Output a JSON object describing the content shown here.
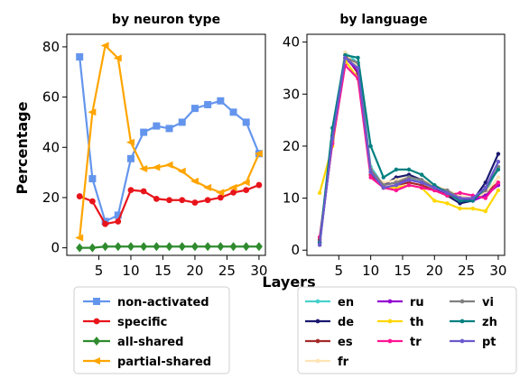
{
  "chart_data": [
    {
      "type": "line",
      "title": "by neuron type",
      "ylabel": "Percentage",
      "xlabel": "",
      "xlim": [
        0,
        31
      ],
      "ylim": [
        -3,
        85
      ],
      "xticks": [
        5,
        10,
        15,
        20,
        25,
        30
      ],
      "yticks": [
        0,
        20,
        40,
        60,
        80
      ],
      "grid": false,
      "legend_placement": "below",
      "x": [
        2,
        4,
        6,
        8,
        10,
        12,
        14,
        16,
        18,
        20,
        22,
        24,
        26,
        28,
        30
      ],
      "series": [
        {
          "name": "non-activated",
          "color": "#6495ED",
          "marker": "square",
          "values": [
            76,
            27.5,
            10.5,
            13,
            35.5,
            46,
            48.5,
            47.5,
            50,
            55.5,
            57,
            58.5,
            54,
            50,
            37.5
          ]
        },
        {
          "name": "specific",
          "color": "#E8141B",
          "marker": "circle",
          "values": [
            20.5,
            18.5,
            9.5,
            10.5,
            23,
            22.5,
            19.5,
            19,
            19,
            18,
            19,
            20,
            22,
            23,
            25
          ]
        },
        {
          "name": "all-shared",
          "color": "#2E8B2E",
          "marker": "diamond",
          "values": [
            0,
            0,
            0.5,
            0.5,
            0.5,
            0.5,
            0.5,
            0.5,
            0.5,
            0.5,
            0.5,
            0.5,
            0.5,
            0.5,
            0.5
          ]
        },
        {
          "name": "partial-shared",
          "color": "#FFA500",
          "marker": "triangle-left",
          "values": [
            4,
            54,
            80.5,
            75.5,
            42,
            31.5,
            32,
            33,
            30.5,
            26.5,
            24,
            22,
            24,
            26,
            37.5
          ]
        }
      ]
    },
    {
      "type": "line",
      "title": "by language",
      "ylabel": "",
      "xlabel": "Layers",
      "xlim": [
        0,
        31
      ],
      "ylim": [
        -1,
        41.5
      ],
      "xticks": [
        5,
        10,
        15,
        20,
        25,
        30
      ],
      "yticks": [
        0,
        10,
        20,
        30,
        40
      ],
      "grid": false,
      "legend_placement": "below",
      "x": [
        2,
        4,
        6,
        8,
        10,
        12,
        14,
        16,
        18,
        20,
        22,
        24,
        26,
        28,
        30
      ],
      "series": [
        {
          "name": "en",
          "color": "#48D1CC",
          "values": [
            2,
            22,
            38,
            36,
            16,
            12.5,
            13,
            14,
            13,
            12,
            11,
            10,
            9.5,
            11,
            16
          ]
        },
        {
          "name": "de",
          "color": "#191970",
          "values": [
            1.5,
            21,
            37,
            35,
            15,
            12.5,
            14,
            14.5,
            13.5,
            12,
            10.5,
            9,
            9.5,
            13,
            18.5
          ]
        },
        {
          "name": "es",
          "color": "#A52A2A",
          "values": [
            2,
            21,
            37.5,
            34,
            14.5,
            12,
            12.5,
            13,
            12.5,
            11.5,
            10.5,
            10,
            10,
            11,
            13
          ]
        },
        {
          "name": "fr",
          "color": "#FFE4B5",
          "values": [
            2.5,
            22,
            38,
            35,
            15,
            13,
            13.5,
            14,
            13.5,
            12.5,
            11.5,
            10.5,
            10,
            11,
            14
          ]
        },
        {
          "name": "ru",
          "color": "#9400D3",
          "values": [
            1.5,
            21,
            37,
            34.5,
            15.5,
            12.5,
            13,
            13.5,
            13,
            12,
            11,
            10,
            9.5,
            10.5,
            12.5
          ]
        },
        {
          "name": "th",
          "color": "#FFD700",
          "values": [
            11,
            20,
            36.5,
            33,
            15.5,
            12,
            12,
            12.5,
            12,
            9.5,
            9,
            8,
            8,
            7.5,
            11.5
          ]
        },
        {
          "name": "tr",
          "color": "#FF1493",
          "values": [
            2.5,
            20.5,
            35.5,
            33,
            14,
            12,
            11.5,
            12.5,
            12,
            11.5,
            10.5,
            11,
            10.5,
            10,
            13
          ]
        },
        {
          "name": "vi",
          "color": "#808080",
          "values": [
            1,
            22,
            37,
            36,
            15.5,
            12.5,
            13,
            14,
            13.5,
            12,
            11.5,
            10,
            10,
            11.5,
            16
          ]
        },
        {
          "name": "zh",
          "color": "#008080",
          "values": [
            1.5,
            23.5,
            37.5,
            37,
            20,
            14,
            15.5,
            15.5,
            14.5,
            12.5,
            11,
            9.5,
            9.5,
            12,
            15.5
          ]
        },
        {
          "name": "pt",
          "color": "#6A5ACD",
          "values": [
            1,
            21.5,
            37,
            35,
            15,
            12,
            12.5,
            13.5,
            13,
            12,
            11,
            10,
            10,
            12,
            17
          ]
        }
      ]
    }
  ]
}
